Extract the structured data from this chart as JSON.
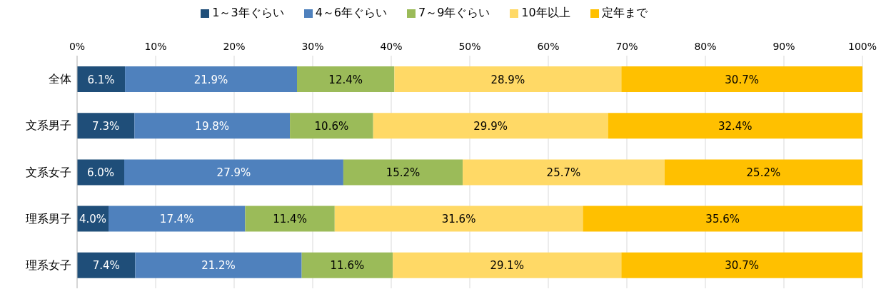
{
  "chart_data": {
    "type": "bar",
    "orientation": "horizontal",
    "stacked": true,
    "legend": "top",
    "grid": "x",
    "categories": [
      "全体",
      "文系男子",
      "文系女子",
      "理系男子",
      "理系女子"
    ],
    "xlim": [
      0,
      100
    ],
    "xticks": [
      {
        "value": 0,
        "label": "0%"
      },
      {
        "value": 10,
        "label": "10%"
      },
      {
        "value": 20,
        "label": "20%"
      },
      {
        "value": 30,
        "label": "30%"
      },
      {
        "value": 40,
        "label": "40%"
      },
      {
        "value": 50,
        "label": "50%"
      },
      {
        "value": 60,
        "label": "60%"
      },
      {
        "value": 70,
        "label": "70%"
      },
      {
        "value": 80,
        "label": "80%"
      },
      {
        "value": 90,
        "label": "90%"
      },
      {
        "value": 100,
        "label": "100%"
      }
    ],
    "series": [
      {
        "name": "1～3年ぐらい",
        "color": "#1f4e79",
        "values": [
          6.1,
          7.3,
          6.0,
          4.0,
          7.4
        ],
        "value_labels": [
          "6.1%",
          "7.3%",
          "6.0%",
          "4.0%",
          "7.4%"
        ]
      },
      {
        "name": "4～6年ぐらい",
        "color": "#4f81bd",
        "values": [
          21.9,
          19.8,
          27.9,
          17.4,
          21.2
        ],
        "value_labels": [
          "21.9%",
          "19.8%",
          "27.9%",
          "17.4%",
          "21.2%"
        ]
      },
      {
        "name": "7～9年ぐらい",
        "color": "#9bbb59",
        "values": [
          12.4,
          10.6,
          15.2,
          11.4,
          11.6
        ],
        "value_labels": [
          "12.4%",
          "10.6%",
          "15.2%",
          "11.4%",
          "11.6%"
        ]
      },
      {
        "name": "10年以上",
        "color": "#ffd966",
        "values": [
          28.9,
          29.9,
          25.7,
          31.6,
          29.1
        ],
        "value_labels": [
          "28.9%",
          "29.9%",
          "25.7%",
          "31.6%",
          "29.1%"
        ]
      },
      {
        "name": "定年まで",
        "color": "#ffc000",
        "values": [
          30.7,
          32.4,
          25.2,
          35.6,
          30.7
        ],
        "value_labels": [
          "30.7%",
          "32.4%",
          "25.2%",
          "35.6%",
          "30.7%"
        ]
      }
    ]
  }
}
